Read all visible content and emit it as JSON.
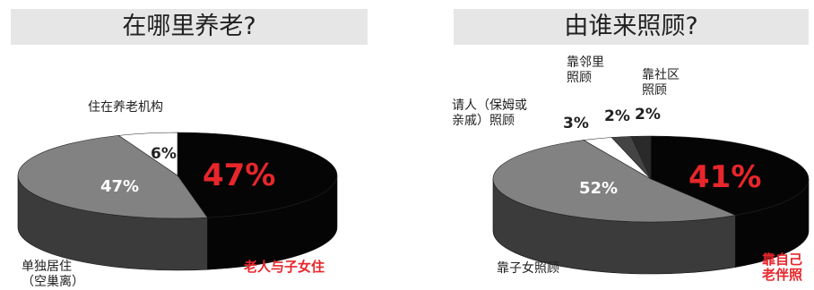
{
  "chart_data": [
    {
      "type": "pie",
      "title": "在哪里养老?",
      "slices": [
        {
          "label": "老人与子女住",
          "value": 47,
          "display": "47%",
          "color": "#050505"
        },
        {
          "label": "单独居住（空巢离）",
          "value": 47,
          "display": "47%",
          "color": "#828282"
        },
        {
          "label": "住在养老机构",
          "value": 6,
          "display": "6%",
          "color": "#ffffff"
        }
      ]
    },
    {
      "type": "pie",
      "title": "由谁来照顾?",
      "slices": [
        {
          "label": "靠自己老伴照",
          "value": 41,
          "display": "41%",
          "color": "#050505"
        },
        {
          "label": "靠子女照顾",
          "value": 52,
          "display": "52%",
          "color": "#828282"
        },
        {
          "label": "请人（保姆或亲戚）照顾",
          "value": 3,
          "display": "3%",
          "color": "#ffffff"
        },
        {
          "label": "靠邻里照顾",
          "value": 2,
          "display": "2%",
          "color": "#444444"
        },
        {
          "label": "靠社区照顾",
          "value": 2,
          "display": "2%",
          "color": "#2a2a2a"
        }
      ]
    }
  ],
  "labels_left": {
    "institution": "住在养老机构",
    "alone_1": "单独居住",
    "alone_2": "（空巢离）",
    "with_children": "老人与子女住"
  },
  "labels_right": {
    "neighbor_1": "靠邻里",
    "neighbor_2": "照顾",
    "community_1": "靠社区",
    "community_2": "照顾",
    "hired_1": "请人（保姆或",
    "hired_2": "亲戚）照顾",
    "children": "靠子女照顾",
    "self_1": "靠自己",
    "self_2": "老伴照"
  }
}
